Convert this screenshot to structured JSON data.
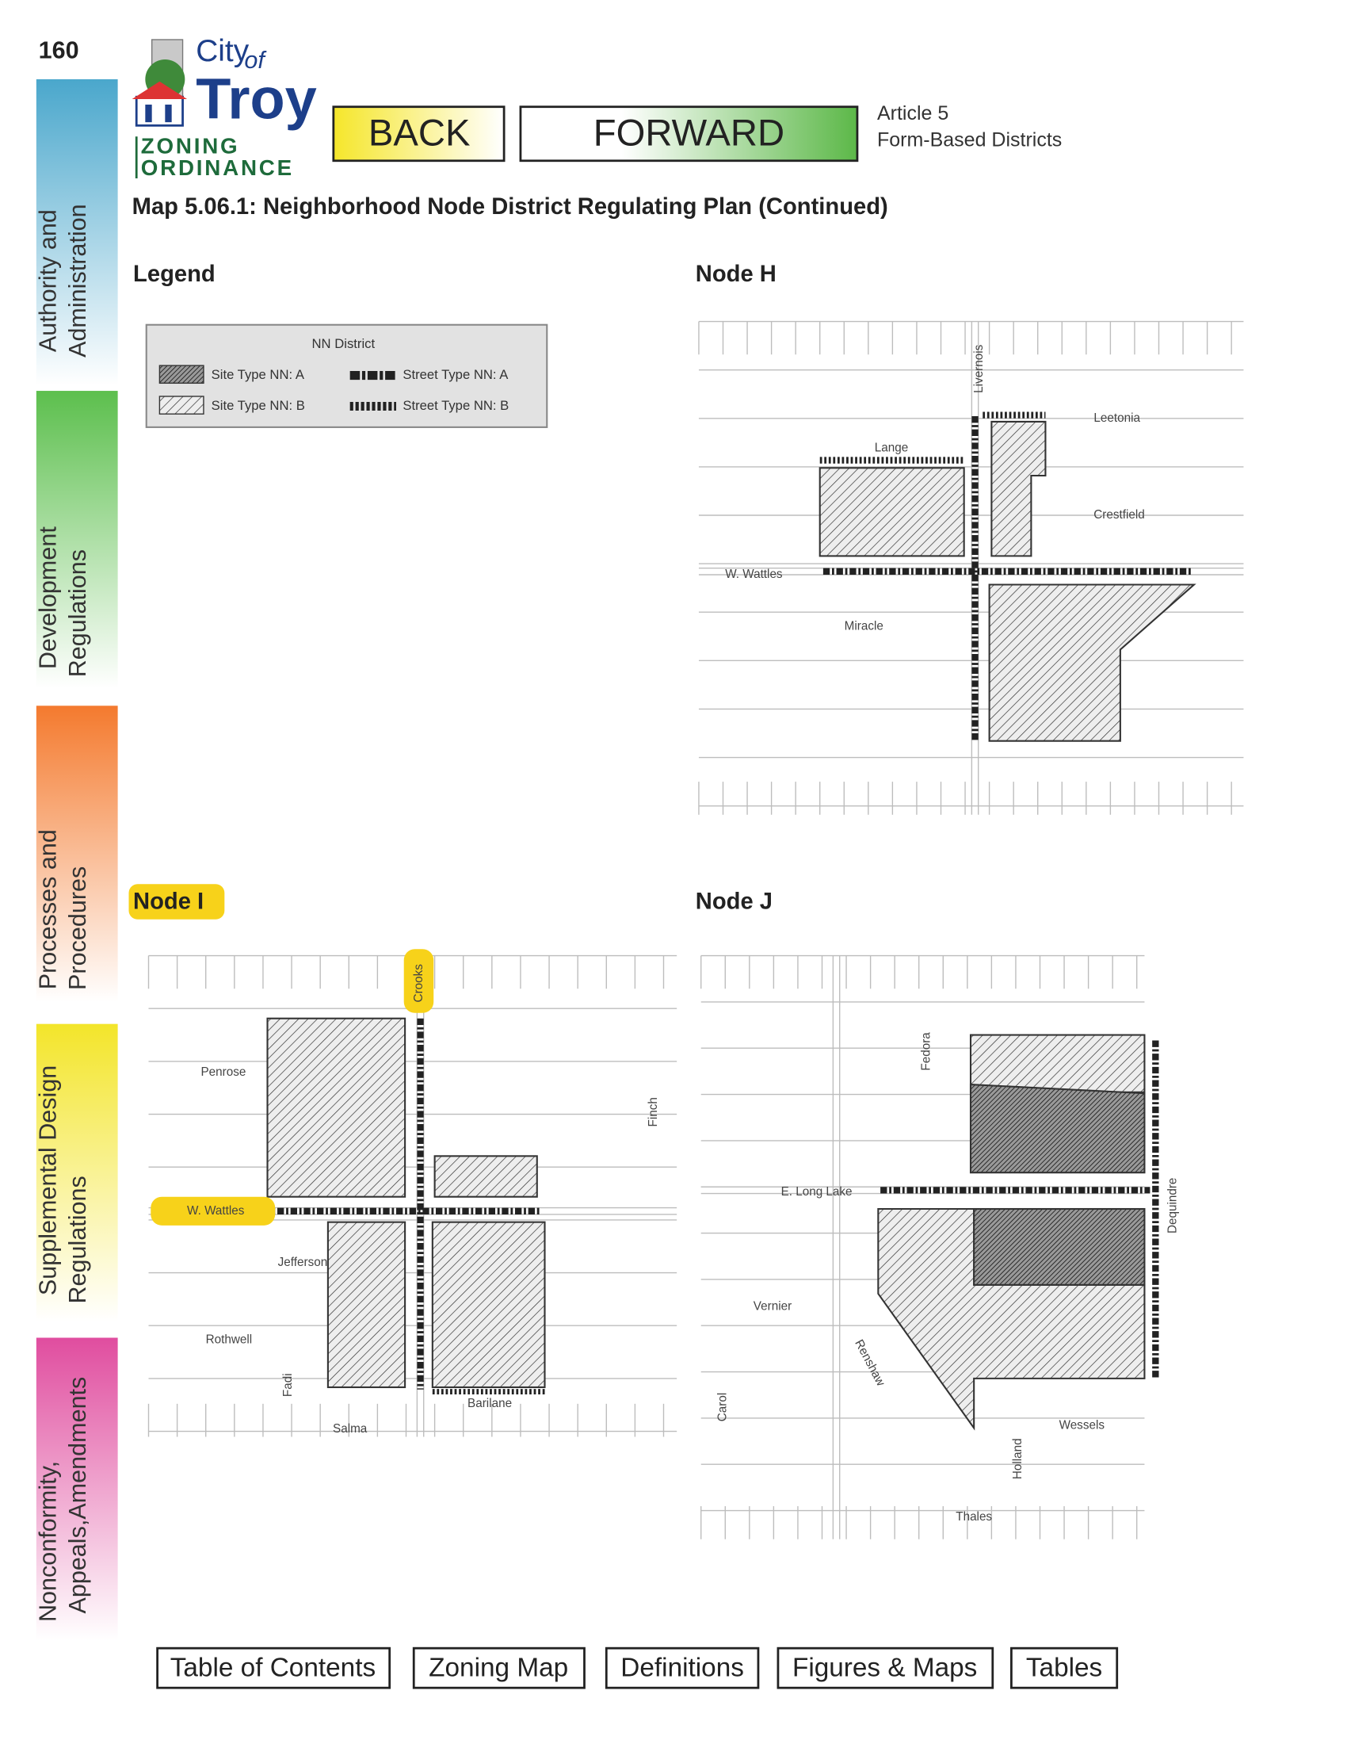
{
  "page_number": "160",
  "sidebar": [
    [
      "Authority and",
      "Administration"
    ],
    [
      "Development",
      "Regulations"
    ],
    [
      "Processes and",
      "Procedures"
    ],
    [
      "Supplemental Design",
      "Regulations"
    ],
    [
      "Nonconformity,",
      "Appeals,Amendments"
    ]
  ],
  "logo": {
    "city": "City",
    "of": "of",
    "troy": "Troy",
    "zoning": "ZONING",
    "ordinance": "ORDINANCE"
  },
  "nav": {
    "back": "BACK",
    "forward": "FORWARD"
  },
  "article": [
    "Article 5",
    "Form-Based Districts"
  ],
  "title": "Map 5.06.1: Neighborhood Node District Regulating Plan (Continued)",
  "legend": {
    "heading": "Legend",
    "box_title": "NN District",
    "items": [
      "Site Type NN: A",
      "Street Type NN: A",
      "Site Type NN: B",
      "Street Type NN: B"
    ]
  },
  "maps": [
    {
      "heading": "Node H",
      "streets": [
        "Livernois",
        "Leetonia",
        "Lange",
        "Crestfield",
        "W. Wattles",
        "Miracle"
      ]
    },
    {
      "heading": "Node I",
      "streets": [
        "Crooks",
        "Penrose",
        "W. Wattles",
        "Jefferson",
        "Rothwell",
        "Fadi",
        "Barilane",
        "Salma",
        "Finch"
      ]
    },
    {
      "heading": "Node J",
      "streets": [
        "Fedora",
        "E. Long Lake",
        "Dequindre",
        "Vernier",
        "Renshaw",
        "Carol",
        "Wessels",
        "Holland",
        "Thales"
      ]
    }
  ],
  "footer_links": [
    "Table of Contents",
    "Zoning Map",
    "Definitions",
    "Figures & Maps",
    "Tables"
  ]
}
